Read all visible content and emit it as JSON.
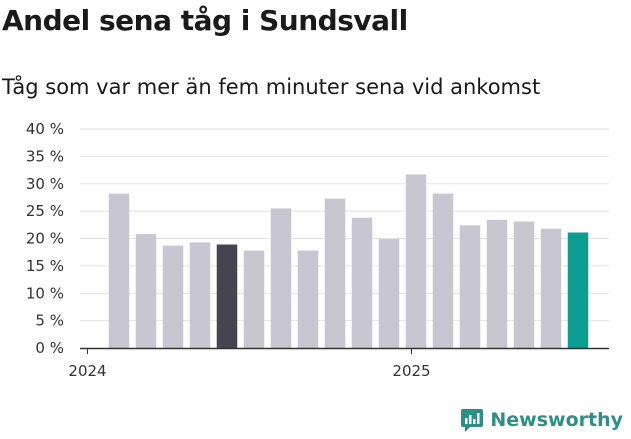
{
  "title": "Andel sena tåg i Sundsvall",
  "subtitle": "Tåg som var mer än fem minuter sena vid ankomst",
  "brand": {
    "name": "Newsworthy",
    "icon": "newsworthy-logo-icon",
    "color": "#2f8f86"
  },
  "chart_data": {
    "type": "bar",
    "title": "Andel sena tåg i Sundsvall",
    "subtitle": "Tåg som var mer än fem minuter sena vid ankomst",
    "categories": [
      "2024-01",
      "2024-02",
      "2024-03",
      "2024-04",
      "2024-05",
      "2024-06",
      "2024-07",
      "2024-08",
      "2024-09",
      "2024-10",
      "2024-11",
      "2024-12",
      "2025-01",
      "2025-02",
      "2025-03",
      "2025-04",
      "2025-05",
      "2025-06",
      "2025-07"
    ],
    "series": [
      {
        "values": [
          null,
          28.2,
          20.8,
          18.7,
          19.3,
          18.9,
          17.8,
          25.5,
          17.8,
          27.3,
          23.8,
          19.9,
          31.7,
          28.2,
          22.4,
          23.4,
          23.1,
          21.8,
          21.1
        ]
      }
    ],
    "highlight": {
      "2024-06": "#45444f",
      "2025-07": "#0e9e91"
    },
    "bar_color": "#c8c6d0",
    "x_ticks": [
      {
        "at": "2024-01",
        "label": "2024"
      },
      {
        "at": "2025-01",
        "label": "2025"
      }
    ],
    "y_ticks": [
      "0 %",
      "5 %",
      "10 %",
      "15 %",
      "20 %",
      "25 %",
      "30 %",
      "35 %",
      "40 %"
    ],
    "ylim": [
      0,
      40
    ],
    "grid": true,
    "legend": "none"
  }
}
